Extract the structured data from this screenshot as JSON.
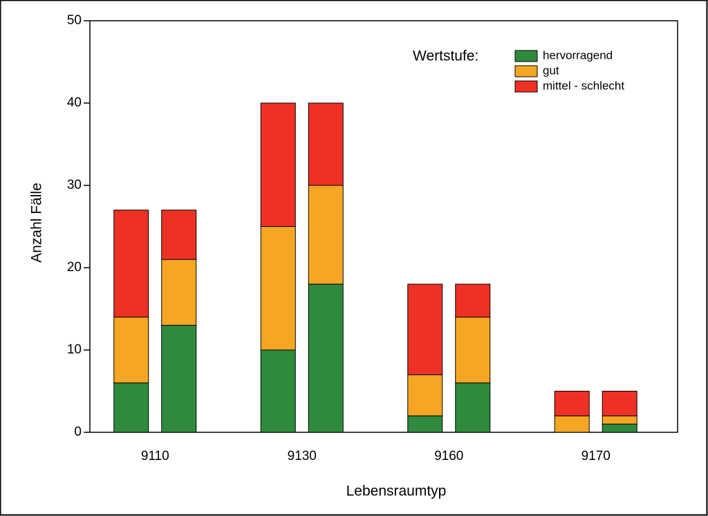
{
  "chart_data": {
    "type": "stacked-grouped-bar",
    "x_label": "Lebensraumtyp",
    "y_label": "Anzahl Fälle",
    "legend_title": "Wertstufe:",
    "legend": "upper right",
    "categories": [
      "9110",
      "9130",
      "9160",
      "9170"
    ],
    "series": [
      {
        "name": "hervorragend",
        "color": "#2e8b3e",
        "values": [
          [
            6,
            13
          ],
          [
            10,
            18
          ],
          [
            2,
            6
          ],
          [
            0,
            1
          ]
        ]
      },
      {
        "name": "gut",
        "color": "#f5a623",
        "values": [
          [
            8,
            8
          ],
          [
            15,
            12
          ],
          [
            5,
            8
          ],
          [
            2,
            1
          ]
        ]
      },
      {
        "name": "mittel - schlecht",
        "color": "#ee3124",
        "values": [
          [
            13,
            6
          ],
          [
            15,
            10
          ],
          [
            11,
            4
          ],
          [
            3,
            3
          ]
        ]
      }
    ],
    "ylim": [
      0,
      50
    ],
    "yticks": [
      0,
      10,
      20,
      30,
      40,
      50
    ]
  }
}
